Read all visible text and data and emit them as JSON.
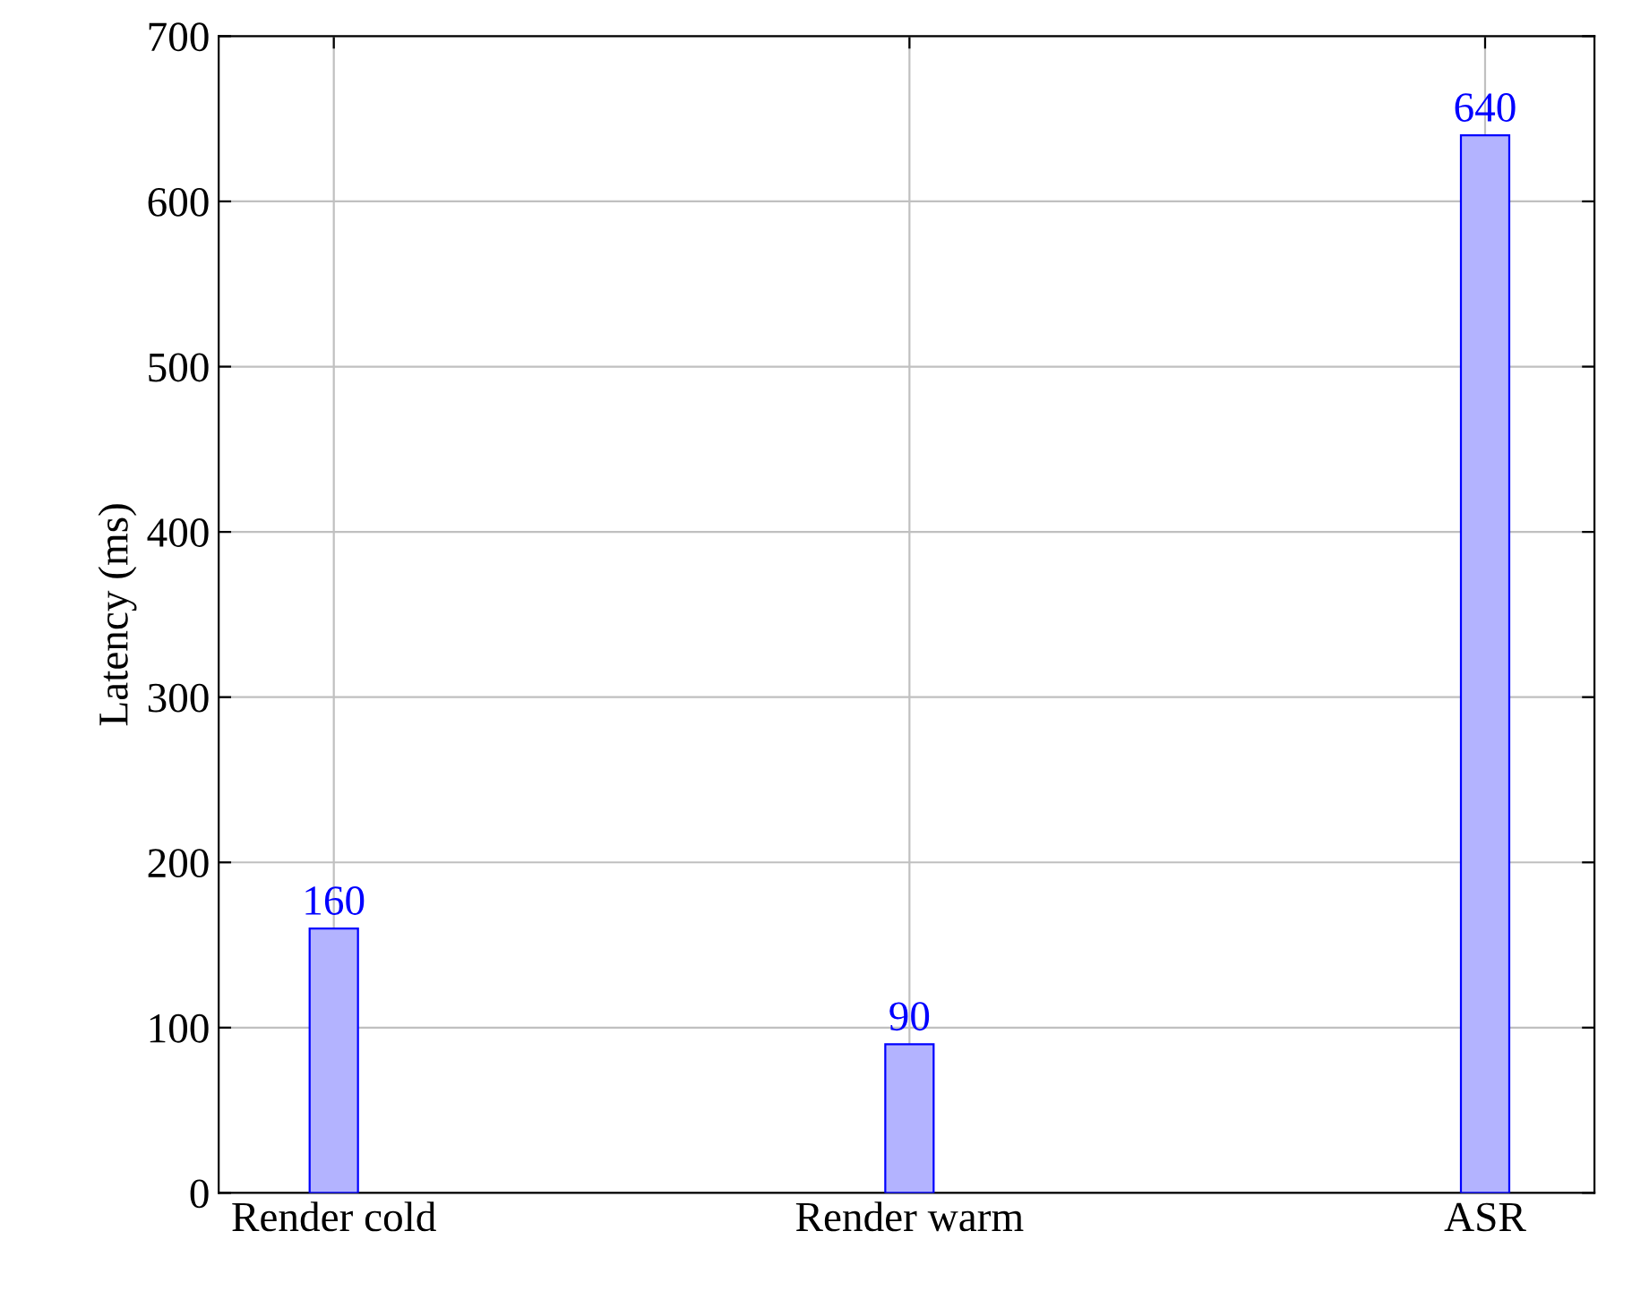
{
  "chart_data": {
    "type": "bar",
    "ylabel": "Latency (ms)",
    "categories": [
      "Render cold",
      "Render warm",
      "ASR"
    ],
    "series": [
      {
        "color": "#b3b3ff",
        "values": [
          160,
          90,
          640
        ]
      }
    ],
    "ylim": [
      0,
      700
    ],
    "yticks": [
      0,
      100,
      200,
      300,
      400,
      500,
      600,
      700
    ],
    "grid": true,
    "data_labels": true
  }
}
